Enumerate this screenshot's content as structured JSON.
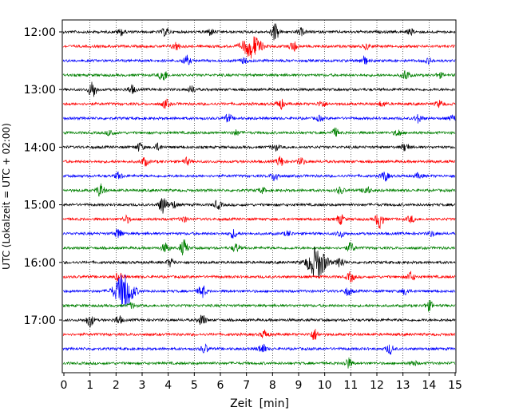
{
  "chart_data": {
    "type": "line",
    "title": "",
    "xlabel": "Zeit  [min]",
    "ylabel": "UTC (Lokalzeit = UTC + 02:00)",
    "xlim": [
      0,
      15
    ],
    "xticks": [
      0,
      1,
      2,
      3,
      4,
      5,
      6,
      7,
      8,
      9,
      10,
      11,
      12,
      13,
      14,
      15
    ],
    "ylim_hours_utc": [
      "11:45",
      "18:00"
    ],
    "yticks": [
      "12:00",
      "13:00",
      "14:00",
      "15:00",
      "16:00",
      "17:00"
    ],
    "grid": "vertical-dotted",
    "colors": [
      "#000000",
      "#ff0000",
      "#0000ff",
      "#008000"
    ],
    "series": [
      {
        "start": "12:00",
        "color": "#000000",
        "events": [
          [
            2.2,
            4
          ],
          [
            3.9,
            5
          ],
          [
            5.6,
            4
          ],
          [
            8.1,
            11
          ],
          [
            9.1,
            4
          ],
          [
            13.3,
            3
          ]
        ]
      },
      {
        "start": "12:15",
        "color": "#ff0000",
        "events": [
          [
            4.3,
            5
          ],
          [
            7.2,
            14
          ],
          [
            8.8,
            6
          ],
          [
            11.6,
            3
          ]
        ]
      },
      {
        "start": "12:30",
        "color": "#0000ff",
        "events": [
          [
            4.7,
            6
          ],
          [
            6.9,
            3
          ],
          [
            11.5,
            5
          ],
          [
            14.0,
            3
          ]
        ]
      },
      {
        "start": "12:45",
        "color": "#008000",
        "events": [
          [
            3.8,
            8
          ],
          [
            13.1,
            6
          ],
          [
            14.4,
            3
          ]
        ]
      },
      {
        "start": "13:00",
        "color": "#000000",
        "events": [
          [
            1.1,
            11
          ],
          [
            2.6,
            5
          ],
          [
            4.9,
            4
          ]
        ]
      },
      {
        "start": "13:15",
        "color": "#ff0000",
        "events": [
          [
            3.9,
            5
          ],
          [
            8.3,
            6
          ],
          [
            9.9,
            4
          ],
          [
            12.2,
            3
          ],
          [
            14.4,
            4
          ]
        ]
      },
      {
        "start": "13:30",
        "color": "#0000ff",
        "events": [
          [
            6.3,
            5
          ],
          [
            9.8,
            3
          ],
          [
            13.6,
            5
          ],
          [
            14.9,
            3
          ]
        ]
      },
      {
        "start": "13:45",
        "color": "#008000",
        "events": [
          [
            1.8,
            4
          ],
          [
            6.6,
            3
          ],
          [
            10.4,
            5
          ],
          [
            12.8,
            4
          ]
        ]
      },
      {
        "start": "14:00",
        "color": "#000000",
        "events": [
          [
            2.9,
            5
          ],
          [
            3.6,
            4
          ],
          [
            8.1,
            4
          ],
          [
            13.1,
            5
          ]
        ]
      },
      {
        "start": "14:15",
        "color": "#ff0000",
        "events": [
          [
            3.1,
            5
          ],
          [
            4.7,
            4
          ],
          [
            8.3,
            6
          ],
          [
            9.1,
            4
          ]
        ]
      },
      {
        "start": "14:30",
        "color": "#0000ff",
        "events": [
          [
            2.1,
            4
          ],
          [
            8.1,
            6
          ],
          [
            12.3,
            6
          ],
          [
            13.6,
            3
          ]
        ]
      },
      {
        "start": "14:45",
        "color": "#008000",
        "events": [
          [
            1.4,
            8
          ],
          [
            7.6,
            3
          ],
          [
            10.6,
            4
          ],
          [
            11.6,
            5
          ]
        ]
      },
      {
        "start": "15:00",
        "color": "#000000",
        "events": [
          [
            3.8,
            12
          ],
          [
            4.2,
            4
          ],
          [
            5.9,
            5
          ]
        ]
      },
      {
        "start": "15:15",
        "color": "#ff0000",
        "events": [
          [
            2.4,
            4
          ],
          [
            4.6,
            3
          ],
          [
            10.6,
            6
          ],
          [
            12.1,
            11
          ],
          [
            13.3,
            4
          ]
        ]
      },
      {
        "start": "15:30",
        "color": "#0000ff",
        "events": [
          [
            2.1,
            6
          ],
          [
            6.5,
            5
          ],
          [
            8.6,
            3
          ],
          [
            10.6,
            4
          ],
          [
            14.1,
            3
          ]
        ]
      },
      {
        "start": "15:45",
        "color": "#008000",
        "events": [
          [
            3.9,
            6
          ],
          [
            4.6,
            10
          ],
          [
            6.6,
            5
          ],
          [
            11.0,
            6
          ]
        ]
      },
      {
        "start": "16:00",
        "color": "#000000",
        "events": [
          [
            4.1,
            5
          ],
          [
            9.7,
            20
          ],
          [
            10.6,
            6
          ]
        ]
      },
      {
        "start": "16:15",
        "color": "#ff0000",
        "events": [
          [
            2.1,
            5
          ],
          [
            11.0,
            6
          ],
          [
            13.3,
            6
          ]
        ]
      },
      {
        "start": "16:30",
        "color": "#0000ff",
        "events": [
          [
            2.3,
            22
          ],
          [
            5.3,
            8
          ],
          [
            10.9,
            5
          ],
          [
            13.1,
            4
          ]
        ]
      },
      {
        "start": "16:45",
        "color": "#008000",
        "events": [
          [
            2.6,
            3
          ],
          [
            14.0,
            6
          ]
        ]
      },
      {
        "start": "17:00",
        "color": "#000000",
        "events": [
          [
            1.0,
            8
          ],
          [
            2.1,
            5
          ],
          [
            5.3,
            7
          ]
        ]
      },
      {
        "start": "17:15",
        "color": "#ff0000",
        "events": [
          [
            7.7,
            5
          ],
          [
            9.6,
            7
          ]
        ]
      },
      {
        "start": "17:30",
        "color": "#0000ff",
        "events": [
          [
            5.4,
            5
          ],
          [
            7.6,
            6
          ],
          [
            12.5,
            6
          ]
        ]
      },
      {
        "start": "17:45",
        "color": "#008000",
        "events": [
          [
            10.9,
            6
          ],
          [
            13.4,
            3
          ]
        ]
      }
    ]
  }
}
